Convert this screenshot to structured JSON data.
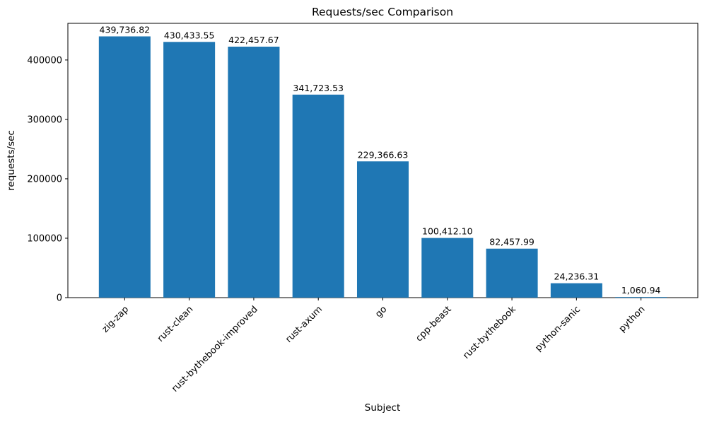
{
  "chart_data": {
    "type": "bar",
    "title": "Requests/sec Comparison",
    "xlabel": "Subject",
    "ylabel": "requests/sec",
    "categories": [
      "zig-zap",
      "rust-clean",
      "rust-bythebook-improved",
      "rust-axum",
      "go",
      "cpp-beast",
      "rust-bythebook",
      "python-sanic",
      "python"
    ],
    "values": [
      439736.82,
      430433.55,
      422457.67,
      341723.53,
      229366.63,
      100412.1,
      82457.99,
      24236.31,
      1060.94
    ],
    "value_labels": [
      "439,736.82",
      "430,433.55",
      "422,457.67",
      "341,723.53",
      "229,366.63",
      "100,412.10",
      "82,457.99",
      "24,236.31",
      "1,060.94"
    ],
    "yticks": [
      0,
      100000,
      200000,
      300000,
      400000
    ],
    "ylim": [
      0,
      461724
    ],
    "bar_color": "#1f77b4",
    "axis_color": "#000000",
    "grid": false,
    "legend_position": "none"
  }
}
